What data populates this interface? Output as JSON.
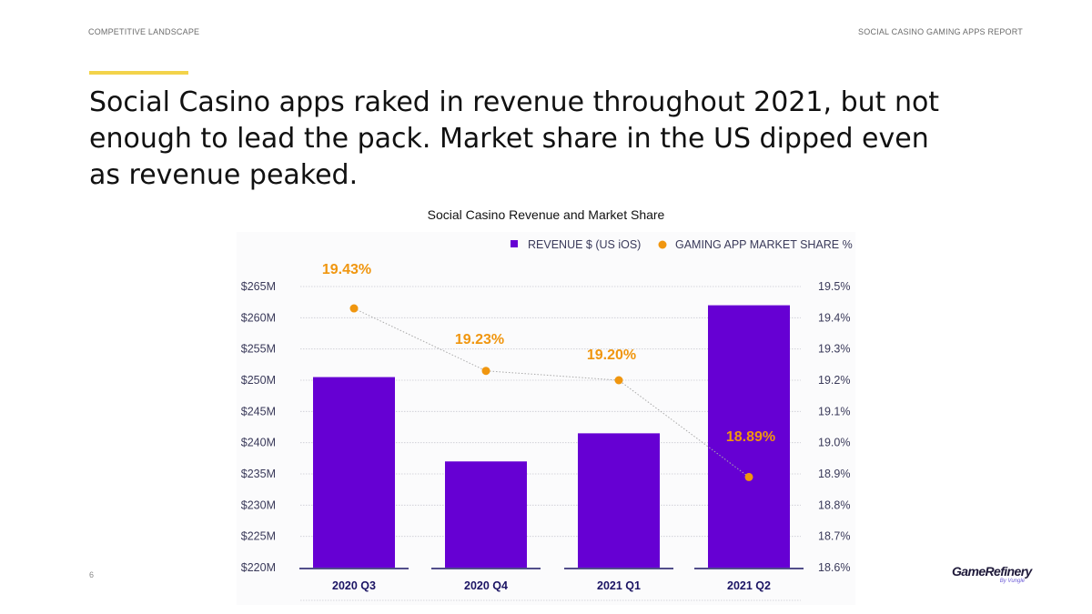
{
  "header": {
    "section": "COMPETITIVE LANDSCAPE",
    "report": "SOCIAL CASINO GAMING APPS REPORT"
  },
  "headline": "Social Casino apps raked in revenue throughout 2021, but not enough to lead the pack. Market share in the US dipped even as revenue peaked.",
  "page_number": "6",
  "logo": {
    "name": "GameRefinery",
    "tagline": "By Vungle"
  },
  "colors": {
    "bar": "#6600d3",
    "line": "#f0960f",
    "accent": "#f3d34a"
  },
  "chart_data": {
    "type": "bar",
    "title": "Social Casino Revenue and Market Share",
    "categories": [
      "2020 Q3",
      "2020 Q4",
      "2021 Q1",
      "2021 Q2"
    ],
    "legend_position": "top-right",
    "grid": true,
    "series": [
      {
        "name": "REVENUE $ (US iOS)",
        "type": "bar",
        "axis": "left",
        "values": [
          250.5,
          237,
          241.5,
          262
        ]
      },
      {
        "name": "GAMING APP MARKET SHARE %",
        "type": "line",
        "axis": "right",
        "values": [
          19.43,
          19.23,
          19.2,
          18.89
        ],
        "labels": [
          "19.43%",
          "19.23%",
          "19.20%",
          "18.89%"
        ]
      }
    ],
    "y_left": {
      "range": [
        220,
        265
      ],
      "ticks": [
        "$220M",
        "$225M",
        "$230M",
        "$235M",
        "$240M",
        "$245M",
        "$250M",
        "$255M",
        "$260M",
        "$265M"
      ]
    },
    "y_right": {
      "range": [
        18.6,
        19.5
      ],
      "ticks": [
        "18.6%",
        "18.7%",
        "18.8%",
        "18.9%",
        "19.0%",
        "19.1%",
        "19.2%",
        "19.3%",
        "19.4%",
        "19.5%"
      ]
    }
  }
}
